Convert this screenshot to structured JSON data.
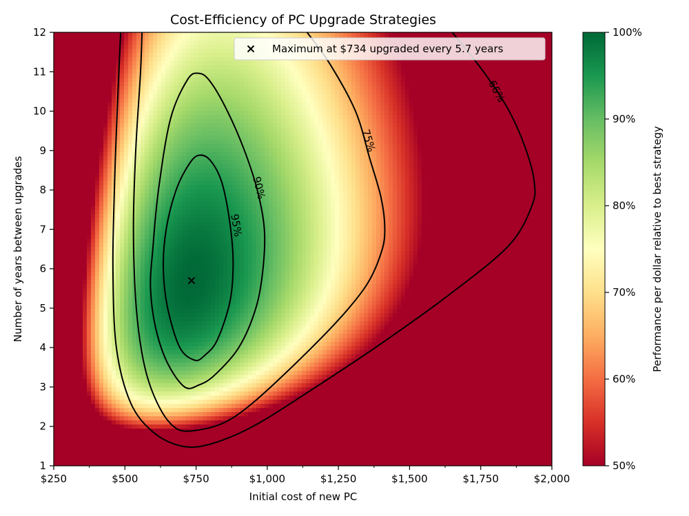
{
  "chart_data": {
    "type": "heatmap",
    "title": "Cost-Efficiency of PC Upgrade Strategies",
    "xlabel": "Initial cost of new PC",
    "ylabel": "Number of years between upgrades",
    "colorbar_label": "Performance per dollar relative to best strategy",
    "xlim": [
      250,
      2000
    ],
    "ylim": [
      1,
      12
    ],
    "x_ticks": [
      {
        "value": 250,
        "label": "$250"
      },
      {
        "value": 500,
        "label": "$500"
      },
      {
        "value": 750,
        "label": "$750"
      },
      {
        "value": 1000,
        "label": "$1,000"
      },
      {
        "value": 1250,
        "label": "$1,250"
      },
      {
        "value": 1500,
        "label": "$1,500"
      },
      {
        "value": 1750,
        "label": "$1,750"
      },
      {
        "value": 2000,
        "label": "$2,000"
      }
    ],
    "y_ticks": [
      {
        "value": 1,
        "label": "1"
      },
      {
        "value": 2,
        "label": "2"
      },
      {
        "value": 3,
        "label": "3"
      },
      {
        "value": 4,
        "label": "4"
      },
      {
        "value": 5,
        "label": "5"
      },
      {
        "value": 6,
        "label": "6"
      },
      {
        "value": 7,
        "label": "7"
      },
      {
        "value": 8,
        "label": "8"
      },
      {
        "value": 9,
        "label": "9"
      },
      {
        "value": 10,
        "label": "10"
      },
      {
        "value": 11,
        "label": "11"
      },
      {
        "value": 12,
        "label": "12"
      }
    ],
    "colorbar_range": [
      50,
      100
    ],
    "colorbar_ticks": [
      {
        "value": 50,
        "label": "50%"
      },
      {
        "value": 60,
        "label": "60%"
      },
      {
        "value": 70,
        "label": "70%"
      },
      {
        "value": 80,
        "label": "80%"
      },
      {
        "value": 90,
        "label": "90%"
      },
      {
        "value": 100,
        "label": "100%"
      }
    ],
    "colormap": [
      "#a50026",
      "#d73027",
      "#f46d43",
      "#fdae61",
      "#fee08b",
      "#ffffbf",
      "#d9ef8b",
      "#a6d96a",
      "#66bd63",
      "#1a9850",
      "#006837"
    ],
    "maximum": {
      "x": 734,
      "y": 5.7,
      "label": "Maximum at $734 upgraded every 5.7 years"
    },
    "legend_position": "top-right",
    "contours": [
      {
        "level": 95,
        "label": "95%",
        "label_at": [
          890,
          7.1
        ],
        "label_angle": 80,
        "points": [
          [
            745,
            3.68
          ],
          [
            693,
            4.0
          ],
          [
            650,
            5.0
          ],
          [
            635,
            6.0
          ],
          [
            645,
            7.0
          ],
          [
            680,
            8.0
          ],
          [
            725,
            8.65
          ],
          [
            760,
            8.88
          ],
          [
            800,
            8.75
          ],
          [
            840,
            8.2
          ],
          [
            868,
            7.2
          ],
          [
            880,
            6.2
          ],
          [
            870,
            5.2
          ],
          [
            825,
            4.2
          ],
          [
            780,
            3.8
          ]
        ]
      },
      {
        "level": 90,
        "label": "90%",
        "label_at": [
          970,
          8.05
        ],
        "label_angle": 76,
        "points": [
          [
            710,
            3.0
          ],
          [
            650,
            3.6
          ],
          [
            608,
            4.5
          ],
          [
            590,
            5.5
          ],
          [
            598,
            6.5
          ],
          [
            618,
            8.0
          ],
          [
            660,
            9.8
          ],
          [
            720,
            10.8
          ],
          [
            760,
            10.96
          ],
          [
            800,
            10.75
          ],
          [
            860,
            10.0
          ],
          [
            920,
            9.0
          ],
          [
            965,
            8.0
          ],
          [
            990,
            7.0
          ],
          [
            985,
            6.0
          ],
          [
            960,
            5.0
          ],
          [
            900,
            4.0
          ],
          [
            815,
            3.3
          ],
          [
            760,
            3.05
          ]
        ]
      },
      {
        "level": 75,
        "label": "75%",
        "label_at": [
          1355,
          9.25
        ],
        "label_angle": 73,
        "points": [
          [
            560,
            12.0
          ],
          [
            555,
            11.0
          ],
          [
            538,
            9.0
          ],
          [
            530,
            7.0
          ],
          [
            540,
            5.0
          ],
          [
            570,
            3.5
          ],
          [
            620,
            2.5
          ],
          [
            680,
            1.95
          ],
          [
            750,
            1.9
          ],
          [
            850,
            2.1
          ],
          [
            950,
            2.6
          ],
          [
            1100,
            3.6
          ],
          [
            1250,
            4.7
          ],
          [
            1350,
            5.6
          ],
          [
            1400,
            6.4
          ],
          [
            1413,
            7.0
          ],
          [
            1400,
            7.8
          ],
          [
            1360,
            8.8
          ],
          [
            1310,
            10.0
          ],
          [
            1220,
            11.2
          ],
          [
            1140,
            12.0
          ]
        ]
      },
      {
        "level": 66,
        "label": "66%",
        "label_at": [
          1805,
          10.5
        ],
        "label_angle": 62,
        "points": [
          [
            485,
            12.0
          ],
          [
            473,
            10.0
          ],
          [
            463,
            8.0
          ],
          [
            458,
            6.0
          ],
          [
            470,
            4.0
          ],
          [
            520,
            2.6
          ],
          [
            600,
            1.85
          ],
          [
            700,
            1.5
          ],
          [
            800,
            1.55
          ],
          [
            950,
            2.0
          ],
          [
            1150,
            2.9
          ],
          [
            1400,
            4.1
          ],
          [
            1650,
            5.4
          ],
          [
            1850,
            6.6
          ],
          [
            1930,
            7.6
          ],
          [
            1938,
            8.2
          ],
          [
            1910,
            9.0
          ],
          [
            1850,
            10.0
          ],
          [
            1760,
            11.0
          ],
          [
            1650,
            12.0
          ]
        ]
      }
    ]
  }
}
